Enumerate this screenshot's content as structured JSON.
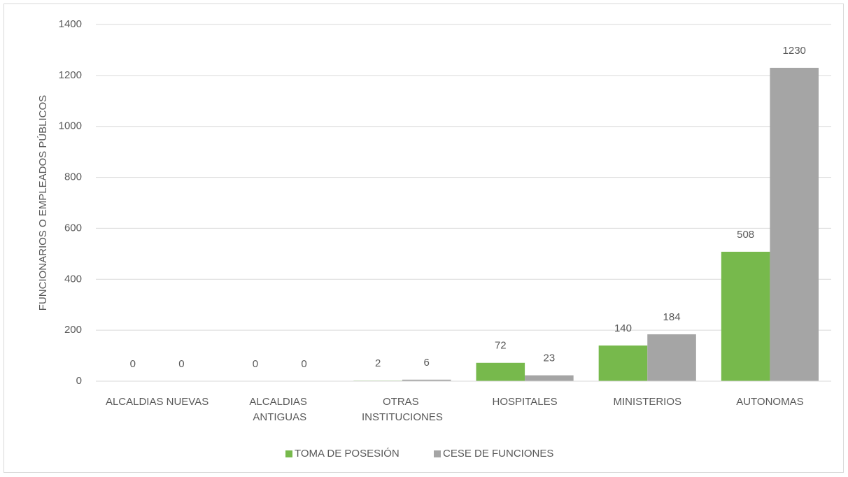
{
  "chart_data": {
    "type": "bar",
    "y_label": "FUNCIONARIOS O EMPLEADOS PÚBLICOS",
    "categories": [
      "ALCALDIAS NUEVAS",
      "ALCALDIAS ANTIGUAS",
      "OTRAS INSTITUCIONES",
      "HOSPITALES",
      "MINISTERIOS",
      "AUTONOMAS"
    ],
    "series": [
      {
        "name": "TOMA DE POSESIÓN",
        "color": "#77b94c",
        "values": [
          0,
          0,
          2,
          72,
          140,
          508
        ]
      },
      {
        "name": "CESE DE FUNCIONES",
        "color": "#a5a5a5",
        "values": [
          0,
          0,
          6,
          23,
          184,
          1230
        ]
      }
    ],
    "ylim": [
      0,
      1400
    ],
    "yticks": [
      0,
      200,
      400,
      600,
      800,
      1000,
      1200,
      1400
    ],
    "grid": true,
    "legend": "bottom"
  }
}
